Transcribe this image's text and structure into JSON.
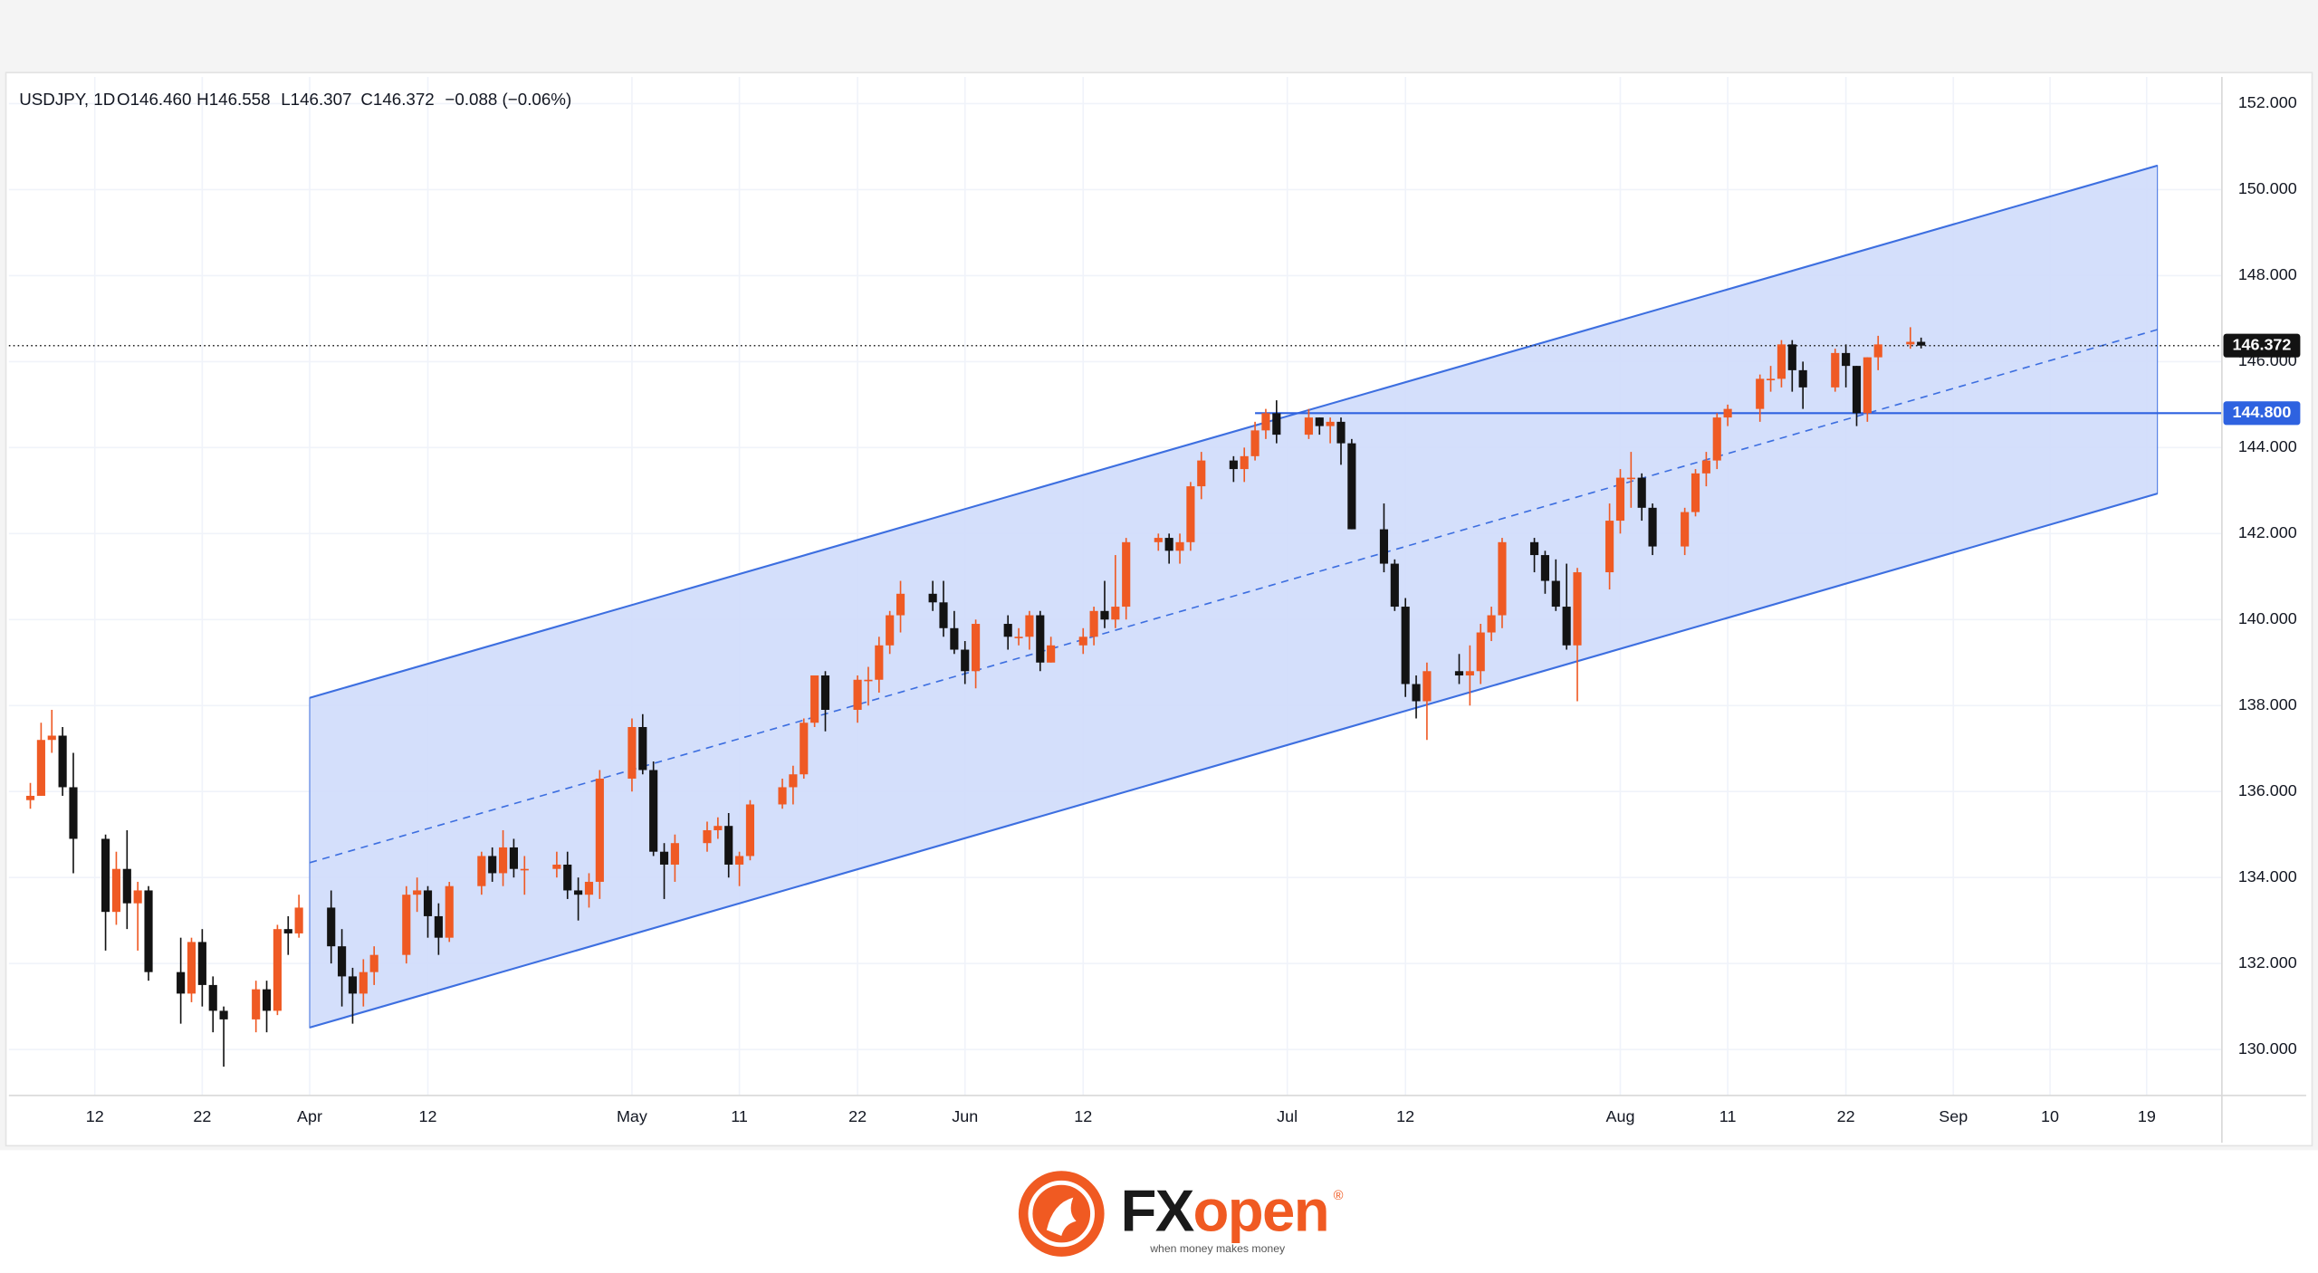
{
  "chart_data": {
    "type": "candlestick",
    "legend": {
      "symbol": "USDJPY, 1D",
      "open": "O146.460",
      "high": "H146.558",
      "low": "L146.307",
      "close": "C146.372",
      "change": "−0.088 (−0.06%)"
    },
    "up_color": "#ef5a24",
    "down_color": "#131313",
    "x": [
      "03-06",
      "03-07",
      "03-08",
      "03-09",
      "03-10",
      "03-13",
      "03-14",
      "03-15",
      "03-16",
      "03-17",
      "03-20",
      "03-21",
      "03-22",
      "03-23",
      "03-24",
      "03-27",
      "03-28",
      "03-29",
      "03-30",
      "03-31",
      "04-03",
      "04-04",
      "04-05",
      "04-06",
      "04-07",
      "04-10",
      "04-11",
      "04-12",
      "04-13",
      "04-14",
      "04-17",
      "04-18",
      "04-19",
      "04-20",
      "04-21",
      "04-24",
      "04-25",
      "04-26",
      "04-27",
      "04-28",
      "05-01",
      "05-02",
      "05-03",
      "05-04",
      "05-05",
      "05-08",
      "05-09",
      "05-10",
      "05-11",
      "05-12",
      "05-15",
      "05-16",
      "05-17",
      "05-18",
      "05-19",
      "05-22",
      "05-23",
      "05-24",
      "05-25",
      "05-26",
      "05-29",
      "05-30",
      "05-31",
      "06-01",
      "06-02",
      "06-05",
      "06-06",
      "06-07",
      "06-08",
      "06-09",
      "06-12",
      "06-13",
      "06-14",
      "06-15",
      "06-16",
      "06-19",
      "06-20",
      "06-21",
      "06-22",
      "06-23",
      "06-26",
      "06-27",
      "06-28",
      "06-29",
      "06-30",
      "07-03",
      "07-04",
      "07-05",
      "07-06",
      "07-07",
      "07-10",
      "07-11",
      "07-12",
      "07-13",
      "07-14",
      "07-17",
      "07-18",
      "07-19",
      "07-20",
      "07-21",
      "07-24",
      "07-25",
      "07-26",
      "07-27",
      "07-28",
      "07-31",
      "08-01",
      "08-02",
      "08-03",
      "08-04",
      "08-07",
      "08-08",
      "08-09",
      "08-10",
      "08-11",
      "08-14",
      "08-15",
      "08-16",
      "08-17",
      "08-18",
      "08-21",
      "08-22",
      "08-23",
      "08-24",
      "08-25",
      "08-28",
      "08-29"
    ],
    "open": [
      135.8,
      135.9,
      137.2,
      137.3,
      136.1,
      134.9,
      133.2,
      134.2,
      133.4,
      133.7,
      131.8,
      131.3,
      132.5,
      131.5,
      130.9,
      130.7,
      131.4,
      130.9,
      132.8,
      132.7,
      133.3,
      132.4,
      131.7,
      131.3,
      131.8,
      132.2,
      133.6,
      133.7,
      133.1,
      132.6,
      133.8,
      134.5,
      134.1,
      134.7,
      134.2,
      134.2,
      134.3,
      133.7,
      133.6,
      133.9,
      136.3,
      137.5,
      136.5,
      134.6,
      134.3,
      134.8,
      135.1,
      135.2,
      134.3,
      134.5,
      135.7,
      136.1,
      136.4,
      137.6,
      138.7,
      137.9,
      138.6,
      138.6,
      139.4,
      140.1,
      140.6,
      140.4,
      139.8,
      139.3,
      138.8,
      139.9,
      139.6,
      139.6,
      140.1,
      139.0,
      139.4,
      139.6,
      140.2,
      140.0,
      140.3,
      141.8,
      141.9,
      141.6,
      141.8,
      143.1,
      143.7,
      143.5,
      143.8,
      144.4,
      144.8,
      144.3,
      144.7,
      144.5,
      144.6,
      144.1,
      142.1,
      141.3,
      140.3,
      138.5,
      138.1,
      138.8,
      138.7,
      138.8,
      139.7,
      140.1,
      141.8,
      141.5,
      140.9,
      140.3,
      139.4,
      141.1,
      142.3,
      143.3,
      143.3,
      142.6,
      141.7,
      142.5,
      143.4,
      143.7,
      144.7,
      144.9,
      145.6,
      145.6,
      146.4,
      145.8,
      145.4,
      146.2,
      145.9,
      144.8,
      146.1,
      146.4,
      146.46
    ],
    "high": [
      136.2,
      137.6,
      137.9,
      137.5,
      136.9,
      135.0,
      134.6,
      135.1,
      133.9,
      133.8,
      132.6,
      132.6,
      132.8,
      131.7,
      131.0,
      131.6,
      131.6,
      132.9,
      133.1,
      133.6,
      133.7,
      132.8,
      131.9,
      132.1,
      132.4,
      133.8,
      134.0,
      133.8,
      133.4,
      133.9,
      134.6,
      134.7,
      135.1,
      134.9,
      134.5,
      134.6,
      134.6,
      134.0,
      134.1,
      136.5,
      137.7,
      137.8,
      136.7,
      134.8,
      135.0,
      135.3,
      135.4,
      135.5,
      134.6,
      135.8,
      136.3,
      136.6,
      137.7,
      138.7,
      138.8,
      138.7,
      138.9,
      139.6,
      140.2,
      140.9,
      140.9,
      140.9,
      140.2,
      139.5,
      140.0,
      140.1,
      139.8,
      140.2,
      140.2,
      139.6,
      139.8,
      140.3,
      140.9,
      141.5,
      141.9,
      142.0,
      142.0,
      142.0,
      143.2,
      143.9,
      143.8,
      144.0,
      144.6,
      144.9,
      145.1,
      144.9,
      144.7,
      144.7,
      144.7,
      144.2,
      142.7,
      141.4,
      140.5,
      138.7,
      139.0,
      139.2,
      139.4,
      139.9,
      140.3,
      141.9,
      141.9,
      141.6,
      141.4,
      141.3,
      141.2,
      142.7,
      143.5,
      143.9,
      143.4,
      142.7,
      142.6,
      143.5,
      143.9,
      144.8,
      145.0,
      145.7,
      145.9,
      146.5,
      146.5,
      146.0,
      146.3,
      146.4,
      145.9,
      146.1,
      146.6,
      146.8,
      146.558
    ],
    "low": [
      135.6,
      135.9,
      136.9,
      135.9,
      134.1,
      132.3,
      132.9,
      132.8,
      132.3,
      131.6,
      130.6,
      131.1,
      131.0,
      130.4,
      129.6,
      130.4,
      130.4,
      130.8,
      132.2,
      132.6,
      132.0,
      131.0,
      130.6,
      131.0,
      131.5,
      132.0,
      133.2,
      132.6,
      132.2,
      132.5,
      133.6,
      133.9,
      133.8,
      134.0,
      133.6,
      134.0,
      133.5,
      133.0,
      133.3,
      133.5,
      136.0,
      136.4,
      134.5,
      133.5,
      133.9,
      134.6,
      134.9,
      134.0,
      133.8,
      134.4,
      135.6,
      135.7,
      136.3,
      137.5,
      137.4,
      137.6,
      138.0,
      138.3,
      139.2,
      139.7,
      140.2,
      139.6,
      139.2,
      138.5,
      138.4,
      139.3,
      139.4,
      139.3,
      138.8,
      139.0,
      139.2,
      139.4,
      139.8,
      139.8,
      140.0,
      141.6,
      141.3,
      141.3,
      141.6,
      142.8,
      143.2,
      143.2,
      143.7,
      144.2,
      144.1,
      144.2,
      144.3,
      144.1,
      143.6,
      142.1,
      141.1,
      140.2,
      138.2,
      137.7,
      137.2,
      138.5,
      138.0,
      138.5,
      139.5,
      139.8,
      141.1,
      140.6,
      140.2,
      139.3,
      138.1,
      140.7,
      142.0,
      142.6,
      142.3,
      141.5,
      141.5,
      142.4,
      143.1,
      143.5,
      144.5,
      144.6,
      145.3,
      145.4,
      145.3,
      144.9,
      145.3,
      145.4,
      144.5,
      144.6,
      145.8,
      146.3,
      146.307
    ],
    "close": [
      135.9,
      137.2,
      137.3,
      136.1,
      134.9,
      133.2,
      134.2,
      133.4,
      133.7,
      131.8,
      131.3,
      132.5,
      131.5,
      130.9,
      130.7,
      131.4,
      130.9,
      132.8,
      132.7,
      133.3,
      132.4,
      131.7,
      131.3,
      131.8,
      132.2,
      133.6,
      133.7,
      133.1,
      132.6,
      133.8,
      134.5,
      134.1,
      134.7,
      134.2,
      134.2,
      134.3,
      133.7,
      133.6,
      133.9,
      136.3,
      137.5,
      136.5,
      134.6,
      134.3,
      134.8,
      135.1,
      135.2,
      134.3,
      134.5,
      135.7,
      136.1,
      136.4,
      137.6,
      138.7,
      137.9,
      138.6,
      138.6,
      139.4,
      140.1,
      140.6,
      140.4,
      139.8,
      139.3,
      138.8,
      139.9,
      139.6,
      139.6,
      140.1,
      139.0,
      139.4,
      139.6,
      140.2,
      140.0,
      140.3,
      141.8,
      141.9,
      141.6,
      141.8,
      143.1,
      143.7,
      143.5,
      143.8,
      144.4,
      144.8,
      144.3,
      144.7,
      144.5,
      144.6,
      144.1,
      142.1,
      141.3,
      140.3,
      138.5,
      138.1,
      138.8,
      138.7,
      138.8,
      139.7,
      140.1,
      141.8,
      141.5,
      140.9,
      140.3,
      139.4,
      141.1,
      142.3,
      143.3,
      143.3,
      142.6,
      141.7,
      142.5,
      143.4,
      143.7,
      144.7,
      144.9,
      145.6,
      145.6,
      146.4,
      145.8,
      145.4,
      146.2,
      145.9,
      144.8,
      146.1,
      146.4,
      146.46,
      146.372
    ],
    "xlim": [
      "03-04",
      "09-26"
    ],
    "xticks": [
      {
        "value": "03-12",
        "label": "12"
      },
      {
        "value": "03-22",
        "label": "22"
      },
      {
        "value": "04-01",
        "label": "Apr"
      },
      {
        "value": "04-12",
        "label": "12"
      },
      {
        "value": "05-01",
        "label": "May"
      },
      {
        "value": "05-11",
        "label": "11"
      },
      {
        "value": "05-22",
        "label": "22"
      },
      {
        "value": "06-01",
        "label": "Jun"
      },
      {
        "value": "06-12",
        "label": "12"
      },
      {
        "value": "07-01",
        "label": "Jul"
      },
      {
        "value": "07-12",
        "label": "12"
      },
      {
        "value": "08-01",
        "label": "Aug"
      },
      {
        "value": "08-11",
        "label": "11"
      },
      {
        "value": "08-22",
        "label": "22"
      },
      {
        "value": "09-01",
        "label": "Sep"
      },
      {
        "value": "09-10",
        "label": "10"
      },
      {
        "value": "09-19",
        "label": "19"
      }
    ],
    "ylim": [
      128.93,
      152.62
    ],
    "yticks": [
      {
        "value": 130,
        "label": "130.000"
      },
      {
        "value": 132,
        "label": "132.000"
      },
      {
        "value": 134,
        "label": "134.000"
      },
      {
        "value": 136,
        "label": "136.000"
      },
      {
        "value": 138,
        "label": "138.000"
      },
      {
        "value": 140,
        "label": "140.000"
      },
      {
        "value": 142,
        "label": "142.000"
      },
      {
        "value": 144,
        "label": "144.000"
      },
      {
        "value": 146,
        "label": "146.000"
      },
      {
        "value": 148,
        "label": "148.000"
      },
      {
        "value": 150,
        "label": "150.000"
      },
      {
        "value": 152,
        "label": "152.000"
      }
    ],
    "grid": true,
    "channel": {
      "start": "04-01",
      "end": "09-20",
      "upper": [
        138.18,
        150.56
      ],
      "lower": [
        130.51,
        142.93
      ],
      "color": "#3d6fe0",
      "fill": "#cfdcfb"
    },
    "level": {
      "value": 144.8,
      "label": "144.800",
      "start": "06-28",
      "color": "#2e62e0"
    },
    "last_price": {
      "value": 146.372,
      "label": "146.372"
    }
  },
  "footer": {
    "brand_prefix": "FX",
    "brand_suffix": "open",
    "registered": "®",
    "tagline": "when money makes money"
  }
}
